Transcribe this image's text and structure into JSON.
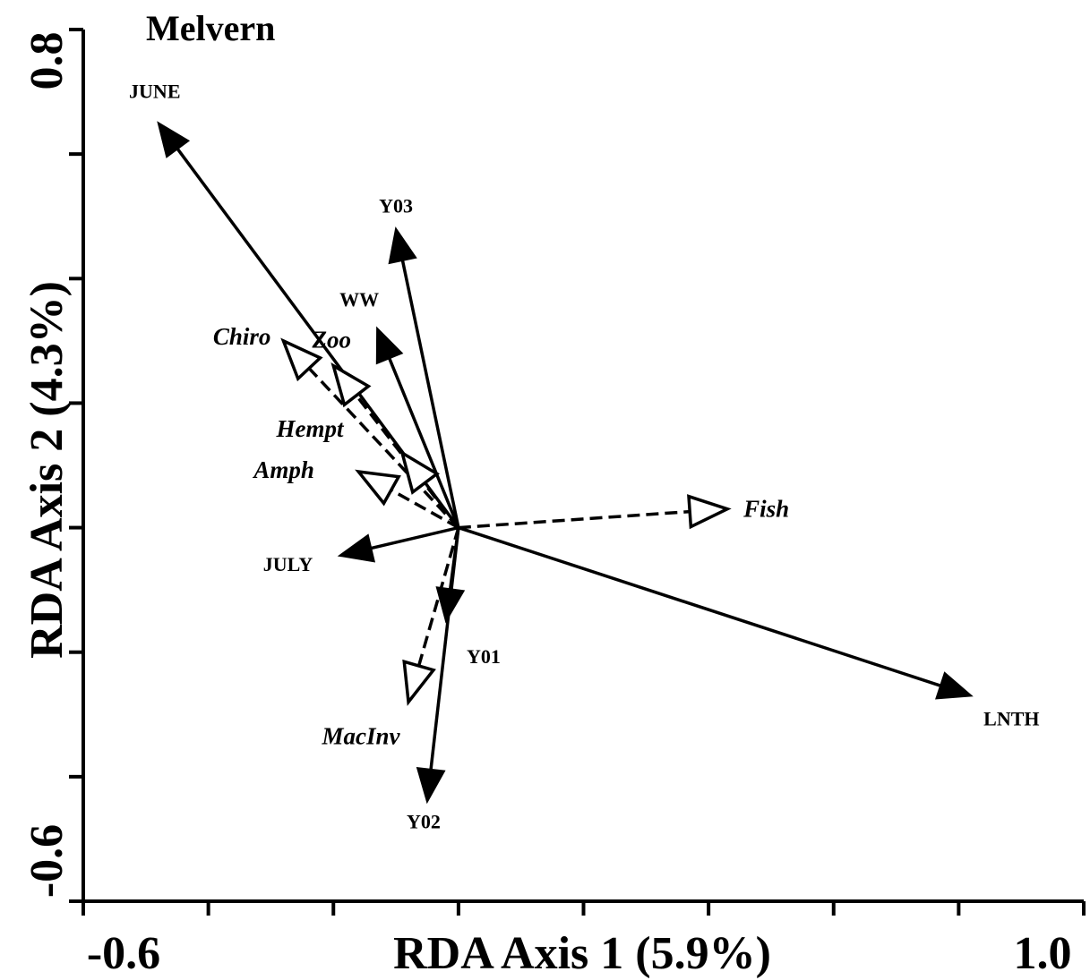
{
  "chart_data": {
    "type": "biplot",
    "title": "Melvern",
    "xlabel": "RDA Axis 1 (5.9%)",
    "ylabel": "RDA Axis 2 (4.3%)",
    "xlim": [
      -0.6,
      1.0
    ],
    "ylim": [
      -0.6,
      0.8
    ],
    "x_tick_labels": [
      "-0.6",
      "1.0"
    ],
    "y_tick_labels": [
      "-0.6",
      "0.8"
    ],
    "x_tick_step": 0.2,
    "y_tick_step": 0.2,
    "explanatory_variables": [
      {
        "label": "JUNE",
        "x": -0.48,
        "y": 0.65
      },
      {
        "label": "Y03",
        "x": -0.1,
        "y": 0.48
      },
      {
        "label": "WW",
        "x": -0.13,
        "y": 0.32
      },
      {
        "label": "JULY",
        "x": -0.19,
        "y": -0.045
      },
      {
        "label": "Y01",
        "x": -0.02,
        "y": -0.15
      },
      {
        "label": "Y02",
        "x": -0.05,
        "y": -0.44
      },
      {
        "label": "LNTH",
        "x": 0.82,
        "y": -0.27
      }
    ],
    "response_variables": [
      {
        "label": "Chiro",
        "x": -0.28,
        "y": 0.3
      },
      {
        "label": "Zoo",
        "x": -0.2,
        "y": 0.26
      },
      {
        "label": "Hempt",
        "x": -0.09,
        "y": 0.12
      },
      {
        "label": "Amph",
        "x": -0.16,
        "y": 0.09
      },
      {
        "label": "Fish",
        "x": 0.43,
        "y": 0.03
      },
      {
        "label": "MacInv",
        "x": -0.08,
        "y": -0.28
      }
    ]
  }
}
